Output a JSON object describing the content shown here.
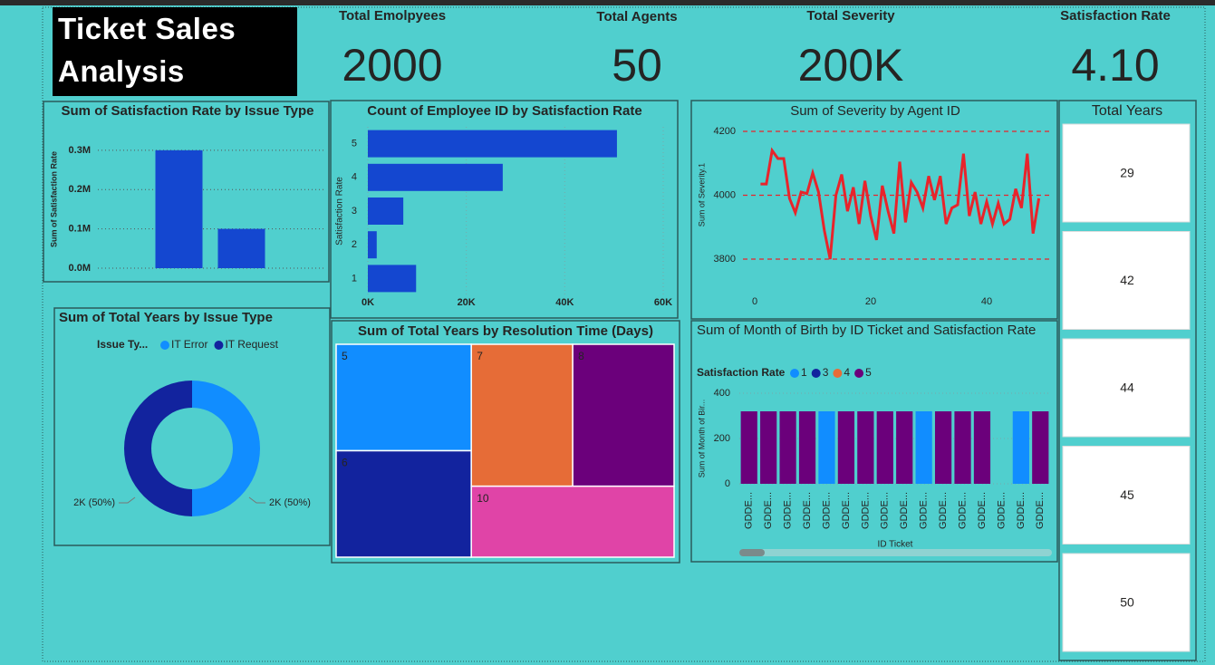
{
  "header": {
    "title": "Ticket Sales Analysis"
  },
  "kpis": [
    {
      "label": "Total Emolpyees",
      "value": "2000"
    },
    {
      "label": "Total Agents",
      "value": "50"
    },
    {
      "label": "Total Severity",
      "value": "200K"
    },
    {
      "label": "Satisfaction Rate",
      "value": "4.10"
    }
  ],
  "slicer": {
    "title": "Total Years",
    "items": [
      29,
      42,
      44,
      45,
      50
    ]
  },
  "chart_data": [
    {
      "type": "bar",
      "title": "Sum of Satisfaction Rate by Issue Type",
      "y_label": "Sum of Satisfaction Rate",
      "categories": [
        null,
        null
      ],
      "values": [
        300000,
        100000
      ],
      "color": "#1447d0",
      "ylim": [
        0,
        325000
      ],
      "yticks": [
        {
          "value": 0,
          "label": "0.0M"
        },
        {
          "value": 100000,
          "label": "0.1M"
        },
        {
          "value": 200000,
          "label": "0.2M"
        },
        {
          "value": 300000,
          "label": "0.3M"
        }
      ],
      "grid": true
    },
    {
      "type": "hbar",
      "title": "Count of Employee ID by Satisfaction Rate",
      "y_label": "Satisfaction Rate",
      "categories": [
        "5",
        "4",
        "3",
        "2",
        "1"
      ],
      "values": [
        50600,
        27400,
        7200,
        1800,
        9800
      ],
      "color": "#1447d0",
      "xlim": [
        0,
        60000
      ],
      "xticks": [
        {
          "value": 0,
          "label": "0K"
        },
        {
          "value": 20000,
          "label": "20K"
        },
        {
          "value": 40000,
          "label": "40K"
        },
        {
          "value": 60000,
          "label": "60K"
        }
      ],
      "grid": true
    },
    {
      "type": "line",
      "title": "Sum of Severity by Agent ID",
      "y_label": "Sum of Severity.1",
      "color": "#e8242b",
      "x": [
        1,
        2,
        3,
        4,
        5,
        6,
        7,
        8,
        9,
        10,
        11,
        12,
        13,
        14,
        15,
        16,
        17,
        18,
        19,
        20,
        21,
        22,
        23,
        24,
        25,
        26,
        27,
        28,
        29,
        30,
        31,
        32,
        33,
        34,
        35,
        36,
        37,
        38,
        39,
        40,
        41,
        42,
        43,
        44,
        45,
        46,
        47,
        48,
        49
      ],
      "values": [
        4035,
        4035,
        4140,
        4115,
        4115,
        3990,
        3945,
        4010,
        4005,
        4070,
        4010,
        3890,
        3800,
        4000,
        4065,
        3950,
        4025,
        3910,
        4045,
        3935,
        3860,
        4030,
        3950,
        3880,
        4105,
        3915,
        4040,
        4010,
        3960,
        4060,
        3985,
        4060,
        3910,
        3960,
        3970,
        4130,
        3935,
        4010,
        3910,
        3980,
        3910,
        3975,
        3910,
        3925,
        4020,
        3960,
        4130,
        3880,
        3990
      ],
      "xlim": [
        -8,
        51
      ],
      "xticks": [
        0,
        20,
        40
      ],
      "ylim": [
        3705,
        4230
      ],
      "yticks": [
        3800,
        4000,
        4200
      ],
      "grid": true
    },
    {
      "type": "pie",
      "title": "Sum of Total Years by Issue Type",
      "legend_title": "Issue Ty...",
      "categories": [
        "IT Error",
        "IT Request"
      ],
      "values": [
        2000,
        2000
      ],
      "value_labels": [
        "2K (50%)",
        "2K (50%)"
      ],
      "colors": [
        "#118dff",
        "#12239e"
      ],
      "donut": true
    },
    {
      "type": "treemap",
      "title": "Sum of Total Years by Resolution Time (Days)",
      "categories": [
        "5",
        "6",
        "7",
        "8",
        "10"
      ],
      "values": [
        400,
        400,
        400,
        400,
        400
      ],
      "colors": [
        "#118dff",
        "#12239e",
        "#e66c37",
        "#6b007b",
        "#e044a7"
      ]
    },
    {
      "type": "column",
      "title": "Sum of Month of Birth by ID Ticket and Satisfaction Rate",
      "legend_title": "Satisfaction Rate",
      "y_label": "Sum of Month of Bir...",
      "x_label": "ID Ticket",
      "categories": [
        "GDDE...",
        "GDDE...",
        "GDDE...",
        "GDDE...",
        "GDDE...",
        "GDDE...",
        "GDDE...",
        "GDDE...",
        "GDDE...",
        "GDDE...",
        "GDDE...",
        "GDDE...",
        "GDDE...",
        "GDDE...",
        "GDDE...",
        "GDDE..."
      ],
      "series": [
        {
          "name": "1",
          "color": "#118dff",
          "values": [
            null,
            null,
            null,
            null,
            320,
            null,
            null,
            null,
            null,
            320,
            null,
            null,
            null,
            null,
            320,
            null
          ]
        },
        {
          "name": "3",
          "color": "#12239e",
          "values": [
            null,
            null,
            null,
            null,
            null,
            null,
            null,
            null,
            null,
            null,
            null,
            null,
            null,
            null,
            null,
            null
          ]
        },
        {
          "name": "4",
          "color": "#e66c37",
          "values": [
            null,
            null,
            null,
            null,
            null,
            null,
            null,
            null,
            null,
            null,
            null,
            null,
            null,
            null,
            null,
            null
          ]
        },
        {
          "name": "5",
          "color": "#6b007b",
          "values": [
            320,
            320,
            320,
            320,
            null,
            320,
            320,
            320,
            320,
            null,
            320,
            320,
            320,
            null,
            null,
            320
          ]
        }
      ],
      "ylim": [
        0,
        416
      ],
      "yticks": [
        0,
        200,
        400
      ],
      "grid": true
    }
  ]
}
